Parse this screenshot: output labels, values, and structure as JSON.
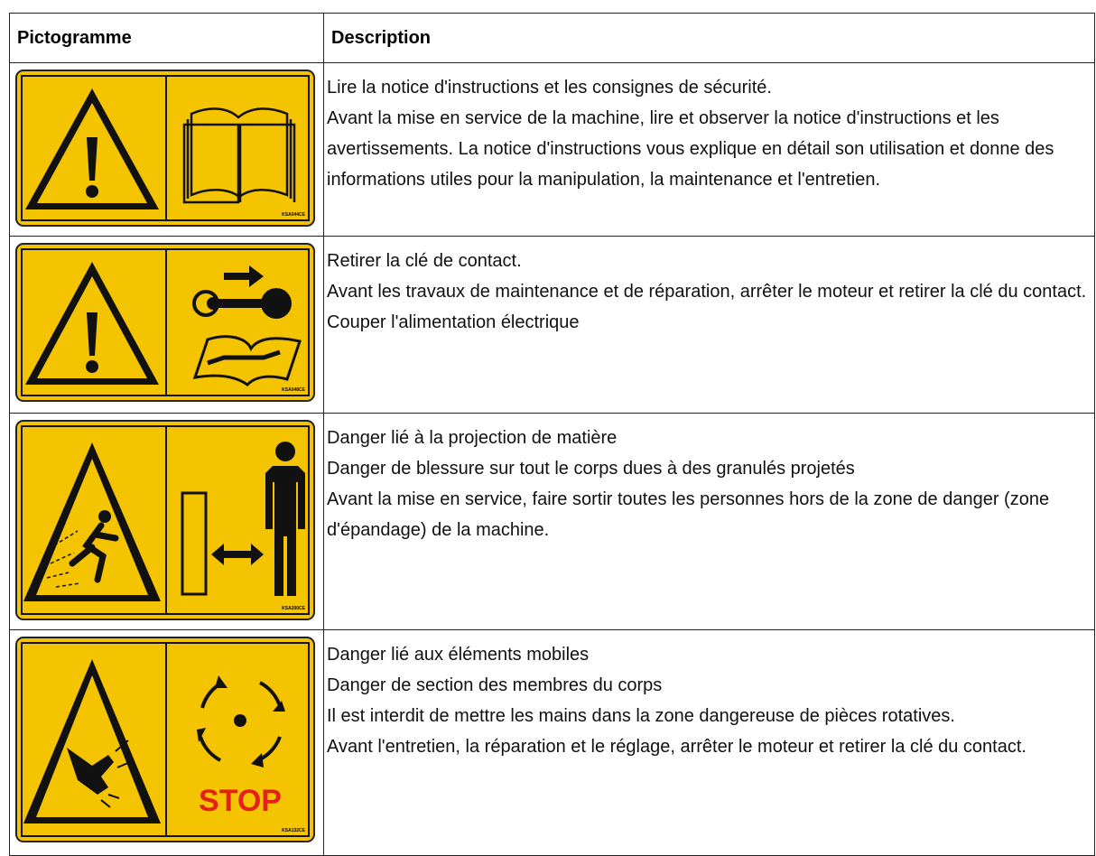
{
  "header": {
    "columns": [
      "Pictogramme",
      "Description"
    ]
  },
  "rows": [
    {
      "code": "KSA044CE",
      "description": [
        "Lire la notice d'instructions et les consignes de sécurité.",
        "Avant la mise en service de la machine, lire et observer la notice d'instructions et les avertissements. La notice d'instructions vous explique en détail son utilisation et donne des informations utiles pour la manipulation, la maintenance et l'entretien."
      ]
    },
    {
      "code": "KSA048CE",
      "description": [
        "Retirer la clé de contact.",
        "Avant les travaux de maintenance et de réparation, arrêter le moteur et retirer la clé du contact. Couper l'alimentation électrique"
      ]
    },
    {
      "code": "KSA200CE",
      "description": [
        "Danger lié à la projection de matière",
        "Danger de blessure sur tout le corps dues à des granulés projetés",
        "Avant la mise en service, faire sortir toutes les personnes hors de la zone de danger (zone d'épandage) de la machine."
      ]
    },
    {
      "code": "KSA132CE",
      "stop": "STOP",
      "description": [
        "Danger lié aux éléments mobiles",
        "Danger de section des membres du corps",
        "Il est interdit de mettre les mains dans la zone dangereuse de pièces rotatives.",
        "Avant l'entretien, la réparation et le réglage, arrêter le moteur et retirer la clé du contact."
      ]
    }
  ]
}
